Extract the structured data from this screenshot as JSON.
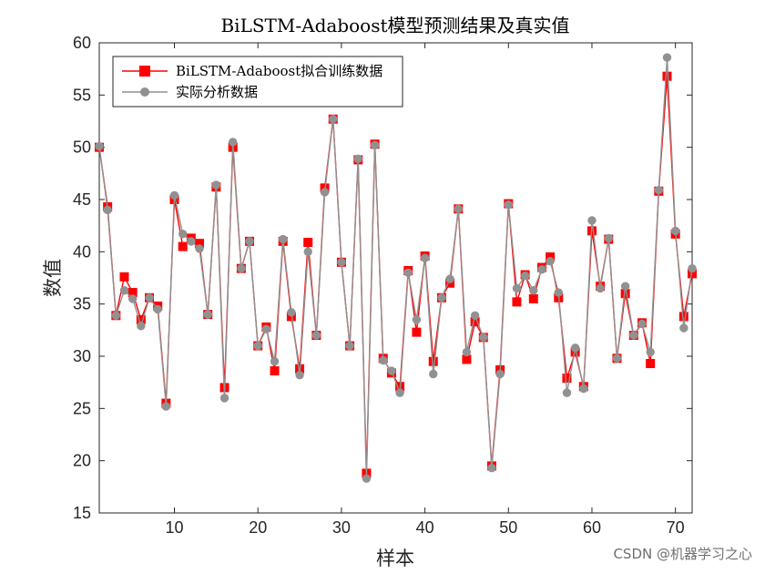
{
  "chart_data": {
    "type": "line",
    "title": "BiLSTM-Adaboost模型预测结果及真实值",
    "xlabel": "样本",
    "ylabel": "数值",
    "xlim": [
      1,
      72
    ],
    "ylim": [
      15,
      60
    ],
    "xticks": [
      10,
      20,
      30,
      40,
      50,
      60,
      70
    ],
    "yticks": [
      15,
      20,
      25,
      30,
      35,
      40,
      45,
      50,
      55,
      60
    ],
    "legend_position": "top-left",
    "series": [
      {
        "name": "BiLSTM-Adaboost拟合训练数据",
        "color": "#ff0000",
        "marker": "square",
        "values": [
          50.0,
          44.3,
          33.9,
          37.6,
          36.1,
          33.5,
          35.6,
          34.8,
          25.5,
          45.0,
          40.5,
          41.3,
          40.8,
          34.0,
          46.2,
          27.0,
          50.0,
          38.4,
          41.0,
          31.0,
          32.8,
          28.6,
          41.0,
          33.8,
          28.8,
          40.9,
          32.0,
          46.1,
          52.7,
          39.0,
          31.0,
          48.8,
          18.8,
          50.3,
          29.8,
          28.4,
          27.1,
          38.2,
          32.3,
          39.6,
          29.5,
          35.6,
          37.0,
          44.1,
          29.7,
          33.3,
          31.8,
          19.5,
          28.7,
          44.6,
          35.2,
          37.8,
          35.5,
          38.5,
          39.5,
          35.6,
          27.9,
          30.4,
          27.1,
          42.0,
          36.7,
          41.2,
          29.8,
          36.0,
          32.0,
          33.2,
          29.3,
          45.8,
          56.8,
          41.7,
          33.8,
          37.9
        ]
      },
      {
        "name": "实际分析数据",
        "color": "#919191",
        "marker": "circle",
        "values": [
          50.1,
          44.0,
          33.9,
          36.3,
          35.5,
          32.9,
          35.6,
          34.5,
          25.2,
          45.4,
          41.7,
          41.0,
          40.3,
          34.0,
          46.4,
          26.0,
          50.5,
          38.4,
          41.0,
          31.0,
          32.6,
          29.5,
          41.2,
          34.2,
          28.2,
          40.0,
          32.0,
          45.7,
          52.7,
          39.0,
          31.0,
          48.9,
          18.3,
          50.2,
          29.6,
          28.6,
          26.5,
          38.0,
          33.5,
          39.4,
          28.3,
          35.6,
          37.4,
          44.1,
          30.4,
          33.9,
          31.8,
          19.3,
          28.3,
          44.5,
          36.5,
          37.7,
          36.3,
          38.3,
          39.1,
          36.1,
          26.5,
          30.8,
          26.9,
          43.0,
          36.5,
          41.3,
          29.8,
          36.7,
          32.0,
          33.1,
          30.4,
          45.9,
          58.6,
          42.0,
          32.7,
          38.4
        ]
      }
    ]
  },
  "watermark": "CSDN @机器学习之心"
}
